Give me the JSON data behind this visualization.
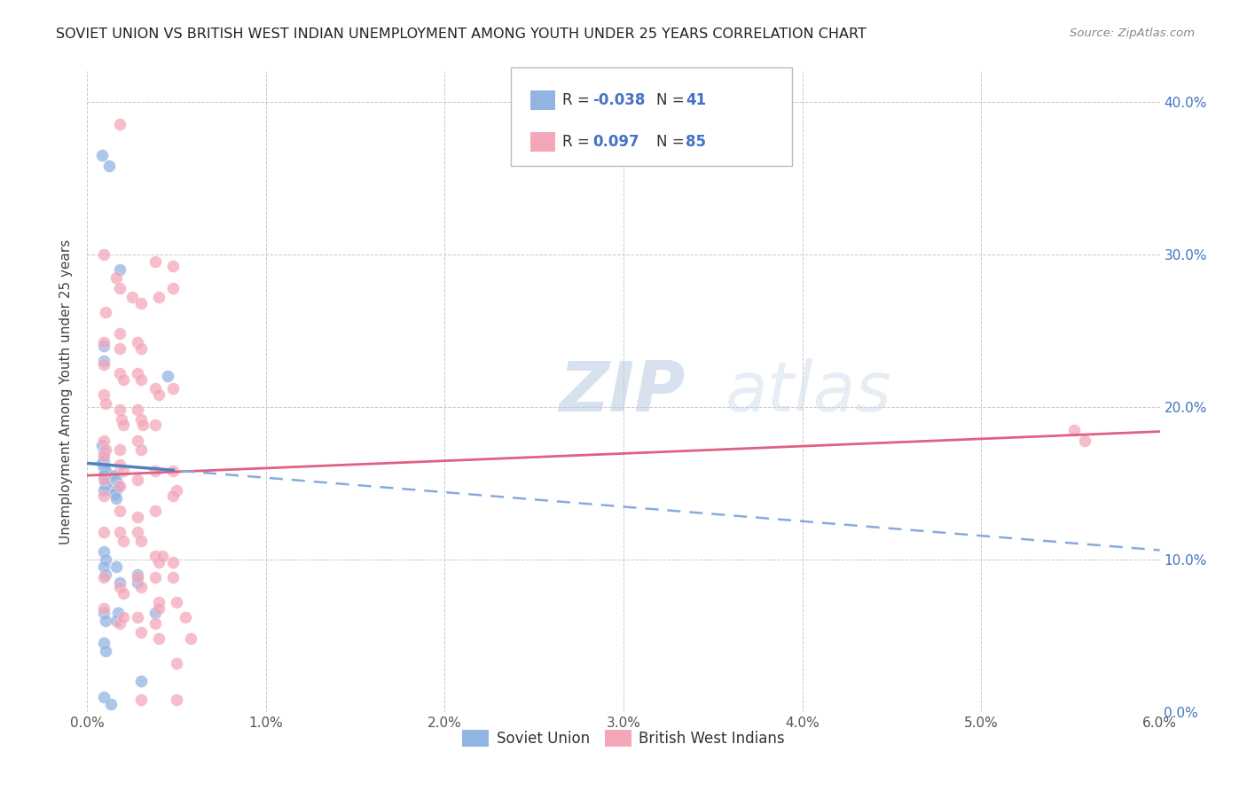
{
  "title": "SOVIET UNION VS BRITISH WEST INDIAN UNEMPLOYMENT AMONG YOUTH UNDER 25 YEARS CORRELATION CHART",
  "source": "Source: ZipAtlas.com",
  "xlabel_ticks": [
    "0.0%",
    "1.0%",
    "2.0%",
    "3.0%",
    "4.0%",
    "5.0%",
    "6.0%"
  ],
  "ylabel_right_ticks": [
    "0.0%",
    "10.0%",
    "20.0%",
    "30.0%",
    "40.0%"
  ],
  "xlim": [
    0.0,
    0.06
  ],
  "ylim": [
    0.0,
    0.42
  ],
  "ylabel": "Unemployment Among Youth under 25 years",
  "legend_r_blue": "-0.038",
  "legend_n_blue": "41",
  "legend_r_pink": "0.097",
  "legend_n_pink": "85",
  "legend_label_blue": "Soviet Union",
  "legend_label_pink": "British West Indians",
  "blue_color": "#92B4E3",
  "pink_color": "#F4A7B9",
  "trend_blue_solid_color": "#5580BB",
  "trend_blue_dash_color": "#88AADD",
  "trend_pink_color": "#E06080",
  "background_color": "#FFFFFF",
  "watermark_text": "ZIPatlas",
  "watermark_color": "#C8D8E8",
  "blue_points": [
    [
      0.0008,
      0.365
    ],
    [
      0.0012,
      0.358
    ],
    [
      0.0018,
      0.29
    ],
    [
      0.0045,
      0.22
    ],
    [
      0.0009,
      0.24
    ],
    [
      0.0009,
      0.23
    ],
    [
      0.0008,
      0.175
    ],
    [
      0.0009,
      0.17
    ],
    [
      0.0009,
      0.165
    ],
    [
      0.0008,
      0.163
    ],
    [
      0.0009,
      0.16
    ],
    [
      0.001,
      0.158
    ],
    [
      0.0009,
      0.155
    ],
    [
      0.001,
      0.153
    ],
    [
      0.001,
      0.15
    ],
    [
      0.001,
      0.148
    ],
    [
      0.0009,
      0.145
    ],
    [
      0.0015,
      0.155
    ],
    [
      0.0016,
      0.152
    ],
    [
      0.0017,
      0.148
    ],
    [
      0.0016,
      0.145
    ],
    [
      0.0015,
      0.143
    ],
    [
      0.0016,
      0.14
    ],
    [
      0.0009,
      0.105
    ],
    [
      0.001,
      0.1
    ],
    [
      0.0009,
      0.095
    ],
    [
      0.001,
      0.09
    ],
    [
      0.0016,
      0.095
    ],
    [
      0.0028,
      0.09
    ],
    [
      0.0018,
      0.085
    ],
    [
      0.0009,
      0.065
    ],
    [
      0.001,
      0.06
    ],
    [
      0.0017,
      0.065
    ],
    [
      0.0016,
      0.06
    ],
    [
      0.0028,
      0.085
    ],
    [
      0.0038,
      0.065
    ],
    [
      0.0009,
      0.045
    ],
    [
      0.001,
      0.04
    ],
    [
      0.003,
      0.02
    ],
    [
      0.0009,
      0.01
    ],
    [
      0.0013,
      0.005
    ]
  ],
  "pink_points": [
    [
      0.0018,
      0.385
    ],
    [
      0.0009,
      0.3
    ],
    [
      0.0016,
      0.285
    ],
    [
      0.0018,
      0.278
    ],
    [
      0.0025,
      0.272
    ],
    [
      0.003,
      0.268
    ],
    [
      0.0038,
      0.295
    ],
    [
      0.0048,
      0.292
    ],
    [
      0.004,
      0.272
    ],
    [
      0.0048,
      0.278
    ],
    [
      0.001,
      0.262
    ],
    [
      0.0018,
      0.248
    ],
    [
      0.0009,
      0.242
    ],
    [
      0.0018,
      0.238
    ],
    [
      0.0028,
      0.242
    ],
    [
      0.003,
      0.238
    ],
    [
      0.0009,
      0.228
    ],
    [
      0.0018,
      0.222
    ],
    [
      0.002,
      0.218
    ],
    [
      0.0028,
      0.222
    ],
    [
      0.003,
      0.218
    ],
    [
      0.0038,
      0.212
    ],
    [
      0.004,
      0.208
    ],
    [
      0.0048,
      0.212
    ],
    [
      0.0009,
      0.208
    ],
    [
      0.001,
      0.202
    ],
    [
      0.0018,
      0.198
    ],
    [
      0.0019,
      0.192
    ],
    [
      0.002,
      0.188
    ],
    [
      0.0028,
      0.198
    ],
    [
      0.003,
      0.192
    ],
    [
      0.0031,
      0.188
    ],
    [
      0.0038,
      0.188
    ],
    [
      0.0009,
      0.178
    ],
    [
      0.001,
      0.172
    ],
    [
      0.0018,
      0.172
    ],
    [
      0.0028,
      0.178
    ],
    [
      0.003,
      0.172
    ],
    [
      0.0009,
      0.168
    ],
    [
      0.0018,
      0.162
    ],
    [
      0.002,
      0.158
    ],
    [
      0.0009,
      0.152
    ],
    [
      0.0018,
      0.148
    ],
    [
      0.0028,
      0.152
    ],
    [
      0.0009,
      0.142
    ],
    [
      0.0048,
      0.158
    ],
    [
      0.005,
      0.145
    ],
    [
      0.0018,
      0.132
    ],
    [
      0.0028,
      0.128
    ],
    [
      0.0038,
      0.132
    ],
    [
      0.0009,
      0.118
    ],
    [
      0.0018,
      0.118
    ],
    [
      0.002,
      0.112
    ],
    [
      0.0028,
      0.118
    ],
    [
      0.003,
      0.112
    ],
    [
      0.0038,
      0.102
    ],
    [
      0.004,
      0.098
    ],
    [
      0.0048,
      0.098
    ],
    [
      0.0009,
      0.088
    ],
    [
      0.0018,
      0.082
    ],
    [
      0.002,
      0.078
    ],
    [
      0.0028,
      0.088
    ],
    [
      0.003,
      0.082
    ],
    [
      0.0038,
      0.088
    ],
    [
      0.004,
      0.072
    ],
    [
      0.0048,
      0.088
    ],
    [
      0.0009,
      0.068
    ],
    [
      0.0018,
      0.058
    ],
    [
      0.002,
      0.062
    ],
    [
      0.0028,
      0.062
    ],
    [
      0.003,
      0.052
    ],
    [
      0.0038,
      0.058
    ],
    [
      0.004,
      0.048
    ],
    [
      0.005,
      0.032
    ],
    [
      0.0055,
      0.062
    ],
    [
      0.0058,
      0.048
    ],
    [
      0.0038,
      0.158
    ],
    [
      0.0552,
      0.185
    ],
    [
      0.0558,
      0.178
    ],
    [
      0.004,
      0.068
    ],
    [
      0.0048,
      0.142
    ],
    [
      0.0042,
      0.102
    ],
    [
      0.005,
      0.072
    ],
    [
      0.003,
      0.008
    ],
    [
      0.005,
      0.008
    ]
  ],
  "trend_blue_intercept": 0.163,
  "trend_blue_slope": -0.95,
  "trend_pink_intercept": 0.155,
  "trend_pink_slope": 0.48
}
